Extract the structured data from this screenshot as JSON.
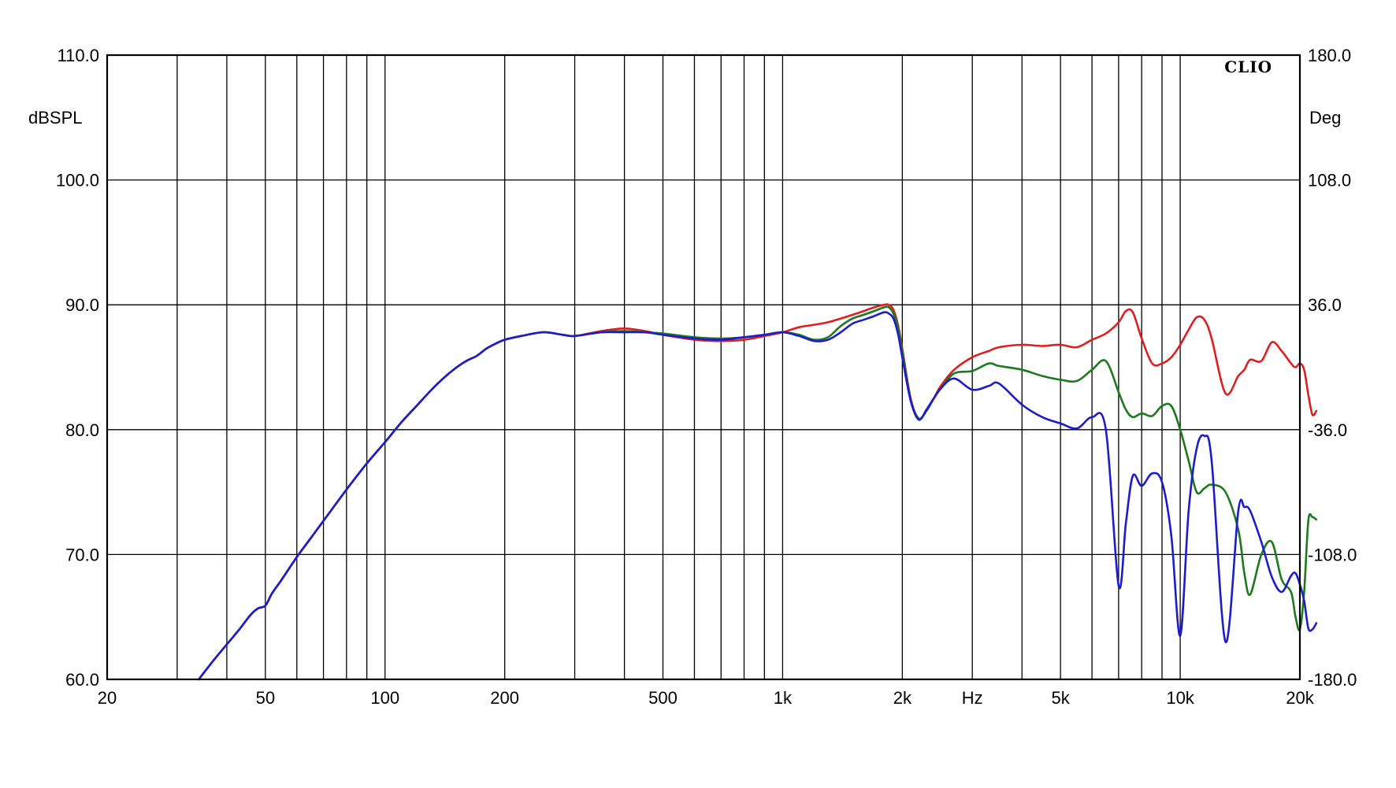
{
  "chart_data": {
    "type": "line",
    "brand": "CLIO",
    "xlabel": "Hz",
    "ylabel_left": "dBSPL",
    "ylabel_right": "Deg",
    "x_scale": "log",
    "xlim": [
      20,
      20000
    ],
    "ylim_left": [
      60,
      110
    ],
    "ylim_right": [
      -180,
      180
    ],
    "grid": true,
    "colors": {
      "red": "#dd1f1f",
      "green": "#1c7a1c",
      "blue": "#1c1ccc",
      "grid": "#000000"
    },
    "x_ticks": [
      {
        "value": 20,
        "label": "20"
      },
      {
        "value": 50,
        "label": "50"
      },
      {
        "value": 100,
        "label": "100"
      },
      {
        "value": 200,
        "label": "200"
      },
      {
        "value": 500,
        "label": "500"
      },
      {
        "value": 1000,
        "label": "1k"
      },
      {
        "value": 2000,
        "label": "2k"
      },
      {
        "value": 3000,
        "label": "Hz"
      },
      {
        "value": 5000,
        "label": "5k"
      },
      {
        "value": 10000,
        "label": "10k"
      },
      {
        "value": 20000,
        "label": "20k"
      }
    ],
    "y_ticks_left": [
      {
        "value": 110,
        "label": "110.0"
      },
      {
        "value": 100,
        "label": "100.0"
      },
      {
        "value": 90,
        "label": "90.0"
      },
      {
        "value": 80,
        "label": "80.0"
      },
      {
        "value": 70,
        "label": "70.0"
      },
      {
        "value": 60,
        "label": "60.0"
      }
    ],
    "y_ticks_right": [
      {
        "value": 180,
        "label": "180.0"
      },
      {
        "value": 108,
        "label": "108.0"
      },
      {
        "value": 36,
        "label": "36.0"
      },
      {
        "value": -36,
        "label": "-36.0"
      },
      {
        "value": -108,
        "label": "-108.0"
      },
      {
        "value": -180,
        "label": "-180.0"
      }
    ],
    "x_gridlines": [
      20,
      30,
      40,
      50,
      60,
      70,
      80,
      90,
      100,
      200,
      300,
      400,
      500,
      600,
      700,
      800,
      900,
      1000,
      2000,
      3000,
      4000,
      5000,
      6000,
      7000,
      8000,
      9000,
      10000,
      20000
    ],
    "series": [
      {
        "color": "red",
        "x": [
          34,
          37,
          40,
          43,
          46,
          48,
          50,
          52,
          55,
          60,
          65,
          70,
          80,
          90,
          100,
          110,
          120,
          130,
          140,
          150,
          160,
          170,
          180,
          190,
          200,
          220,
          250,
          280,
          300,
          350,
          400,
          450,
          500,
          600,
          700,
          800,
          900,
          1000,
          1100,
          1200,
          1300,
          1400,
          1500,
          1600,
          1700,
          1800,
          1850,
          1900,
          1950,
          2000,
          2100,
          2200,
          2300,
          2400,
          2500,
          2700,
          3000,
          3300,
          3500,
          4000,
          4500,
          5000,
          5500,
          6000,
          6500,
          7000,
          7300,
          7600,
          8000,
          8500,
          9000,
          9500,
          10000,
          10500,
          11000,
          11500,
          12000,
          13000,
          14000,
          14500,
          15000,
          16000,
          17000,
          18000,
          19000,
          19500,
          20000,
          20500,
          21000,
          21500,
          22000
        ],
        "y": [
          60,
          61.5,
          62.8,
          64.0,
          65.2,
          65.7,
          65.9,
          66.9,
          68.0,
          69.8,
          71.3,
          72.7,
          75.2,
          77.3,
          79.0,
          80.6,
          81.9,
          83.1,
          84.1,
          84.9,
          85.5,
          85.9,
          86.5,
          86.9,
          87.2,
          87.5,
          87.8,
          87.6,
          87.5,
          87.9,
          88.1,
          87.9,
          87.6,
          87.2,
          87.1,
          87.2,
          87.5,
          87.8,
          88.2,
          88.4,
          88.6,
          88.9,
          89.2,
          89.5,
          89.8,
          90.0,
          90.0,
          89.6,
          88.4,
          86.5,
          82.5,
          80.9,
          81.5,
          82.5,
          83.5,
          84.8,
          85.8,
          86.3,
          86.6,
          86.8,
          86.7,
          86.8,
          86.6,
          87.2,
          87.7,
          88.6,
          89.5,
          89.4,
          87.3,
          85.3,
          85.3,
          85.8,
          86.8,
          88.0,
          89.0,
          88.8,
          87.3,
          82.9,
          84.3,
          84.8,
          85.6,
          85.5,
          87.0,
          86.3,
          85.3,
          85.0,
          85.3,
          84.8,
          82.8,
          81.2,
          81.5
        ]
      },
      {
        "color": "green",
        "x": [
          34,
          37,
          40,
          43,
          46,
          48,
          50,
          52,
          55,
          60,
          65,
          70,
          80,
          90,
          100,
          110,
          120,
          130,
          140,
          150,
          160,
          170,
          180,
          190,
          200,
          220,
          250,
          280,
          300,
          350,
          400,
          450,
          500,
          600,
          700,
          800,
          900,
          1000,
          1100,
          1200,
          1300,
          1400,
          1500,
          1600,
          1700,
          1800,
          1850,
          1900,
          1950,
          2000,
          2100,
          2200,
          2300,
          2400,
          2500,
          2700,
          3000,
          3300,
          3500,
          4000,
          4500,
          5000,
          5500,
          6000,
          6500,
          7000,
          7300,
          7600,
          8000,
          8500,
          9000,
          9500,
          10000,
          10500,
          11000,
          11500,
          12000,
          13000,
          14000,
          14500,
          15000,
          16000,
          17000,
          18000,
          19000,
          19500,
          20000,
          20500,
          21000,
          21500,
          22000
        ],
        "y": [
          60,
          61.5,
          62.8,
          64.0,
          65.2,
          65.7,
          65.9,
          66.9,
          68.0,
          69.8,
          71.3,
          72.7,
          75.2,
          77.3,
          79.0,
          80.6,
          81.9,
          83.1,
          84.1,
          84.9,
          85.5,
          85.9,
          86.5,
          86.9,
          87.2,
          87.5,
          87.8,
          87.6,
          87.5,
          87.8,
          87.9,
          87.8,
          87.7,
          87.4,
          87.3,
          87.4,
          87.6,
          87.8,
          87.6,
          87.2,
          87.4,
          88.3,
          88.9,
          89.2,
          89.5,
          89.8,
          89.8,
          89.3,
          88.2,
          86.3,
          82.4,
          80.9,
          81.5,
          82.5,
          83.3,
          84.5,
          84.7,
          85.3,
          85.1,
          84.8,
          84.3,
          84.0,
          83.9,
          84.8,
          85.5,
          83.0,
          81.6,
          81.0,
          81.3,
          81.1,
          81.9,
          81.9,
          80.0,
          77.5,
          75.0,
          75.3,
          75.6,
          75.0,
          72.0,
          68.5,
          66.8,
          70.0,
          71.0,
          68.0,
          67.0,
          65.0,
          64.0,
          67.0,
          72.7,
          73.0,
          72.8
        ]
      },
      {
        "color": "blue",
        "x": [
          34,
          37,
          40,
          43,
          46,
          48,
          50,
          52,
          55,
          60,
          65,
          70,
          80,
          90,
          100,
          110,
          120,
          130,
          140,
          150,
          160,
          170,
          180,
          190,
          200,
          220,
          250,
          280,
          300,
          350,
          400,
          450,
          500,
          600,
          700,
          800,
          900,
          1000,
          1100,
          1200,
          1300,
          1400,
          1500,
          1600,
          1700,
          1800,
          1850,
          1900,
          1950,
          2000,
          2100,
          2200,
          2300,
          2400,
          2500,
          2700,
          3000,
          3300,
          3500,
          4000,
          4500,
          5000,
          5500,
          6000,
          6500,
          7000,
          7300,
          7600,
          8000,
          8500,
          9000,
          9500,
          10000,
          10500,
          11000,
          11500,
          12000,
          13000,
          14000,
          14500,
          15000,
          16000,
          17000,
          18000,
          19000,
          19500,
          20000,
          20500,
          21000,
          21500,
          22000
        ],
        "y": [
          60,
          61.5,
          62.8,
          64.0,
          65.2,
          65.7,
          65.9,
          66.9,
          68.0,
          69.8,
          71.3,
          72.7,
          75.2,
          77.3,
          79.0,
          80.6,
          81.9,
          83.1,
          84.1,
          84.9,
          85.5,
          85.9,
          86.5,
          86.9,
          87.2,
          87.5,
          87.8,
          87.6,
          87.5,
          87.8,
          87.8,
          87.8,
          87.6,
          87.3,
          87.2,
          87.4,
          87.6,
          87.8,
          87.5,
          87.1,
          87.2,
          87.8,
          88.5,
          88.8,
          89.1,
          89.4,
          89.3,
          88.9,
          87.7,
          85.8,
          82.3,
          80.8,
          81.6,
          82.5,
          83.3,
          84.1,
          83.2,
          83.5,
          83.7,
          82.0,
          81.0,
          80.5,
          80.1,
          81.0,
          80.0,
          67.5,
          72.5,
          76.3,
          75.5,
          76.5,
          75.8,
          71.5,
          63.5,
          73.5,
          78.5,
          79.5,
          77.5,
          63.0,
          73.5,
          73.8,
          73.5,
          71.0,
          68.2,
          67.0,
          68.3,
          68.5,
          67.6,
          66.3,
          64.1,
          64.0,
          64.5
        ]
      }
    ]
  }
}
